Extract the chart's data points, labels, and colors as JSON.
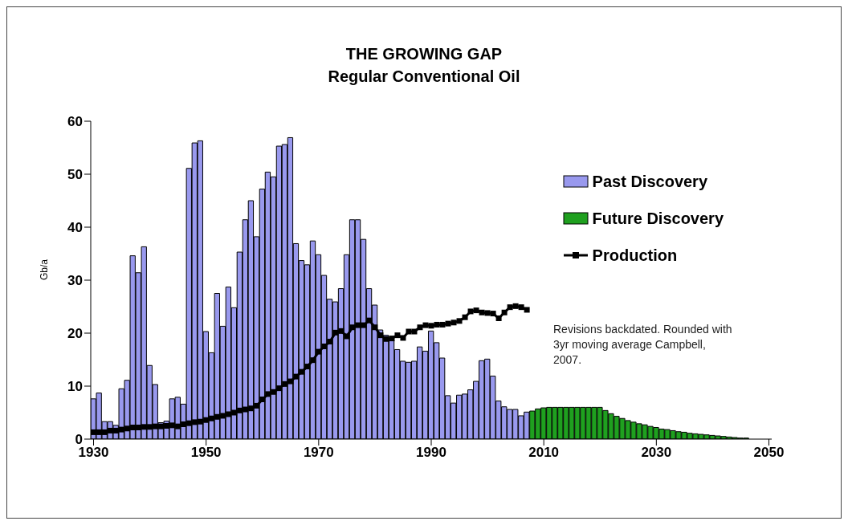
{
  "chart_data": {
    "type": "bar",
    "title": "THE GROWING GAP",
    "subtitle": "Regular Conventional Oil",
    "ylabel": "Gb/a",
    "x": [
      1930,
      1931,
      1932,
      1933,
      1934,
      1935,
      1936,
      1937,
      1938,
      1939,
      1940,
      1941,
      1942,
      1943,
      1944,
      1945,
      1946,
      1947,
      1948,
      1949,
      1950,
      1951,
      1952,
      1953,
      1954,
      1955,
      1956,
      1957,
      1958,
      1959,
      1960,
      1961,
      1962,
      1963,
      1964,
      1965,
      1966,
      1967,
      1968,
      1969,
      1970,
      1971,
      1972,
      1973,
      1974,
      1975,
      1976,
      1977,
      1978,
      1979,
      1980,
      1981,
      1982,
      1983,
      1984,
      1985,
      1986,
      1987,
      1988,
      1989,
      1990,
      1991,
      1992,
      1993,
      1994,
      1995,
      1996,
      1997,
      1998,
      1999,
      2000,
      2001,
      2002,
      2003,
      2004,
      2005,
      2006,
      2007,
      2008,
      2009,
      2010,
      2011,
      2012,
      2013,
      2014,
      2015,
      2016,
      2017,
      2018,
      2019,
      2020,
      2021,
      2022,
      2023,
      2024,
      2025,
      2026,
      2027,
      2028,
      2029,
      2030,
      2031,
      2032,
      2033,
      2034,
      2035,
      2036,
      2037,
      2038,
      2039,
      2040,
      2041,
      2042,
      2043,
      2044,
      2045,
      2046
    ],
    "series": [
      {
        "name": "Past Discovery",
        "color": "#9999ee",
        "values": [
          7.6,
          8.7,
          3.3,
          3.3,
          2.6,
          9.5,
          11.1,
          34.6,
          31.4,
          36.3,
          13.9,
          10.3,
          3.1,
          3.4,
          7.6,
          7.9,
          6.6,
          51.1,
          55.9,
          56.3,
          20.3,
          16.3,
          27.5,
          21.3,
          28.7,
          24.8,
          35.3,
          41.4,
          45.0,
          38.2,
          47.2,
          50.4,
          49.5,
          55.3,
          55.6,
          56.9,
          36.9,
          33.7,
          32.9,
          37.4,
          34.8,
          30.9,
          26.4,
          25.9,
          28.4,
          34.8,
          41.4,
          41.4,
          37.7,
          28.4,
          25.3,
          20.6,
          19.6,
          18.7,
          16.9,
          14.7,
          14.5,
          14.7,
          17.4,
          16.6,
          20.4,
          18.2,
          15.3,
          8.2,
          6.8,
          8.3,
          8.5,
          9.3,
          10.9,
          14.8,
          15.1,
          11.9,
          7.2,
          6.1,
          5.6,
          5.6,
          4.4,
          5.1,
          null,
          null,
          null,
          null,
          null,
          null,
          null,
          null,
          null,
          null,
          null,
          null,
          null,
          null,
          null,
          null,
          null,
          null,
          null,
          null,
          null,
          null,
          null,
          null,
          null,
          null,
          null,
          null,
          null,
          null,
          null,
          null,
          null,
          null,
          null,
          null,
          null,
          null,
          null
        ]
      },
      {
        "name": "Future Discovery",
        "color": "#1fa01f",
        "values": [
          null,
          null,
          null,
          null,
          null,
          null,
          null,
          null,
          null,
          null,
          null,
          null,
          null,
          null,
          null,
          null,
          null,
          null,
          null,
          null,
          null,
          null,
          null,
          null,
          null,
          null,
          null,
          null,
          null,
          null,
          null,
          null,
          null,
          null,
          null,
          null,
          null,
          null,
          null,
          null,
          null,
          null,
          null,
          null,
          null,
          null,
          null,
          null,
          null,
          null,
          null,
          null,
          null,
          null,
          null,
          null,
          null,
          null,
          null,
          null,
          null,
          null,
          null,
          null,
          null,
          null,
          null,
          null,
          null,
          null,
          null,
          null,
          null,
          null,
          null,
          null,
          null,
          null,
          5.3,
          5.7,
          5.9,
          6.0,
          6.0,
          6.0,
          6.0,
          6.0,
          6.0,
          6.0,
          6.0,
          6.0,
          6.0,
          5.4,
          4.8,
          4.3,
          3.9,
          3.5,
          3.2,
          2.9,
          2.7,
          2.4,
          2.2,
          1.9,
          1.8,
          1.6,
          1.4,
          1.3,
          1.1,
          1.0,
          0.9,
          0.8,
          0.7,
          0.6,
          0.5,
          0.4,
          0.3,
          0.2,
          0.2
        ]
      },
      {
        "name": "Production",
        "type": "line",
        "color": "#000000",
        "marker": "square",
        "values": [
          1.3,
          1.3,
          1.3,
          1.6,
          1.6,
          1.8,
          2.0,
          2.2,
          2.2,
          2.3,
          2.3,
          2.4,
          2.4,
          2.5,
          2.6,
          2.4,
          2.8,
          3.0,
          3.2,
          3.3,
          3.6,
          3.9,
          4.2,
          4.4,
          4.7,
          5.0,
          5.4,
          5.6,
          5.8,
          6.3,
          7.5,
          8.5,
          8.9,
          9.6,
          10.4,
          10.9,
          11.8,
          12.7,
          13.7,
          14.9,
          16.5,
          17.5,
          18.4,
          20.1,
          20.4,
          19.4,
          21.1,
          21.5,
          21.5,
          22.4,
          21.1,
          19.6,
          18.9,
          19.0,
          19.6,
          19.1,
          20.3,
          20.3,
          21.1,
          21.5,
          21.4,
          21.6,
          21.6,
          21.8,
          22.0,
          22.3,
          23.0,
          24.1,
          24.3,
          23.9,
          23.8,
          23.7,
          22.8,
          23.9,
          24.9,
          25.1,
          24.9,
          24.4,
          null,
          null,
          null,
          null,
          null,
          null,
          null,
          null,
          null,
          null,
          null,
          null,
          null,
          null,
          null,
          null,
          null,
          null,
          null,
          null,
          null,
          null,
          null,
          null,
          null,
          null,
          null,
          null,
          null,
          null,
          null,
          null,
          null,
          null,
          null,
          null,
          null,
          null,
          null
        ]
      }
    ],
    "xlim": [
      1929.5,
      2050.5
    ],
    "xticks": [
      1930,
      1950,
      1970,
      1990,
      2010,
      2030,
      2050
    ],
    "ylim": [
      0,
      60
    ],
    "yticks": [
      0,
      10,
      20,
      30,
      40,
      50,
      60
    ],
    "grid": false,
    "legend": "top right",
    "annotations": [
      "Revisions backdated. Rounded with 3yr moving average   Campbell, 2007."
    ]
  }
}
